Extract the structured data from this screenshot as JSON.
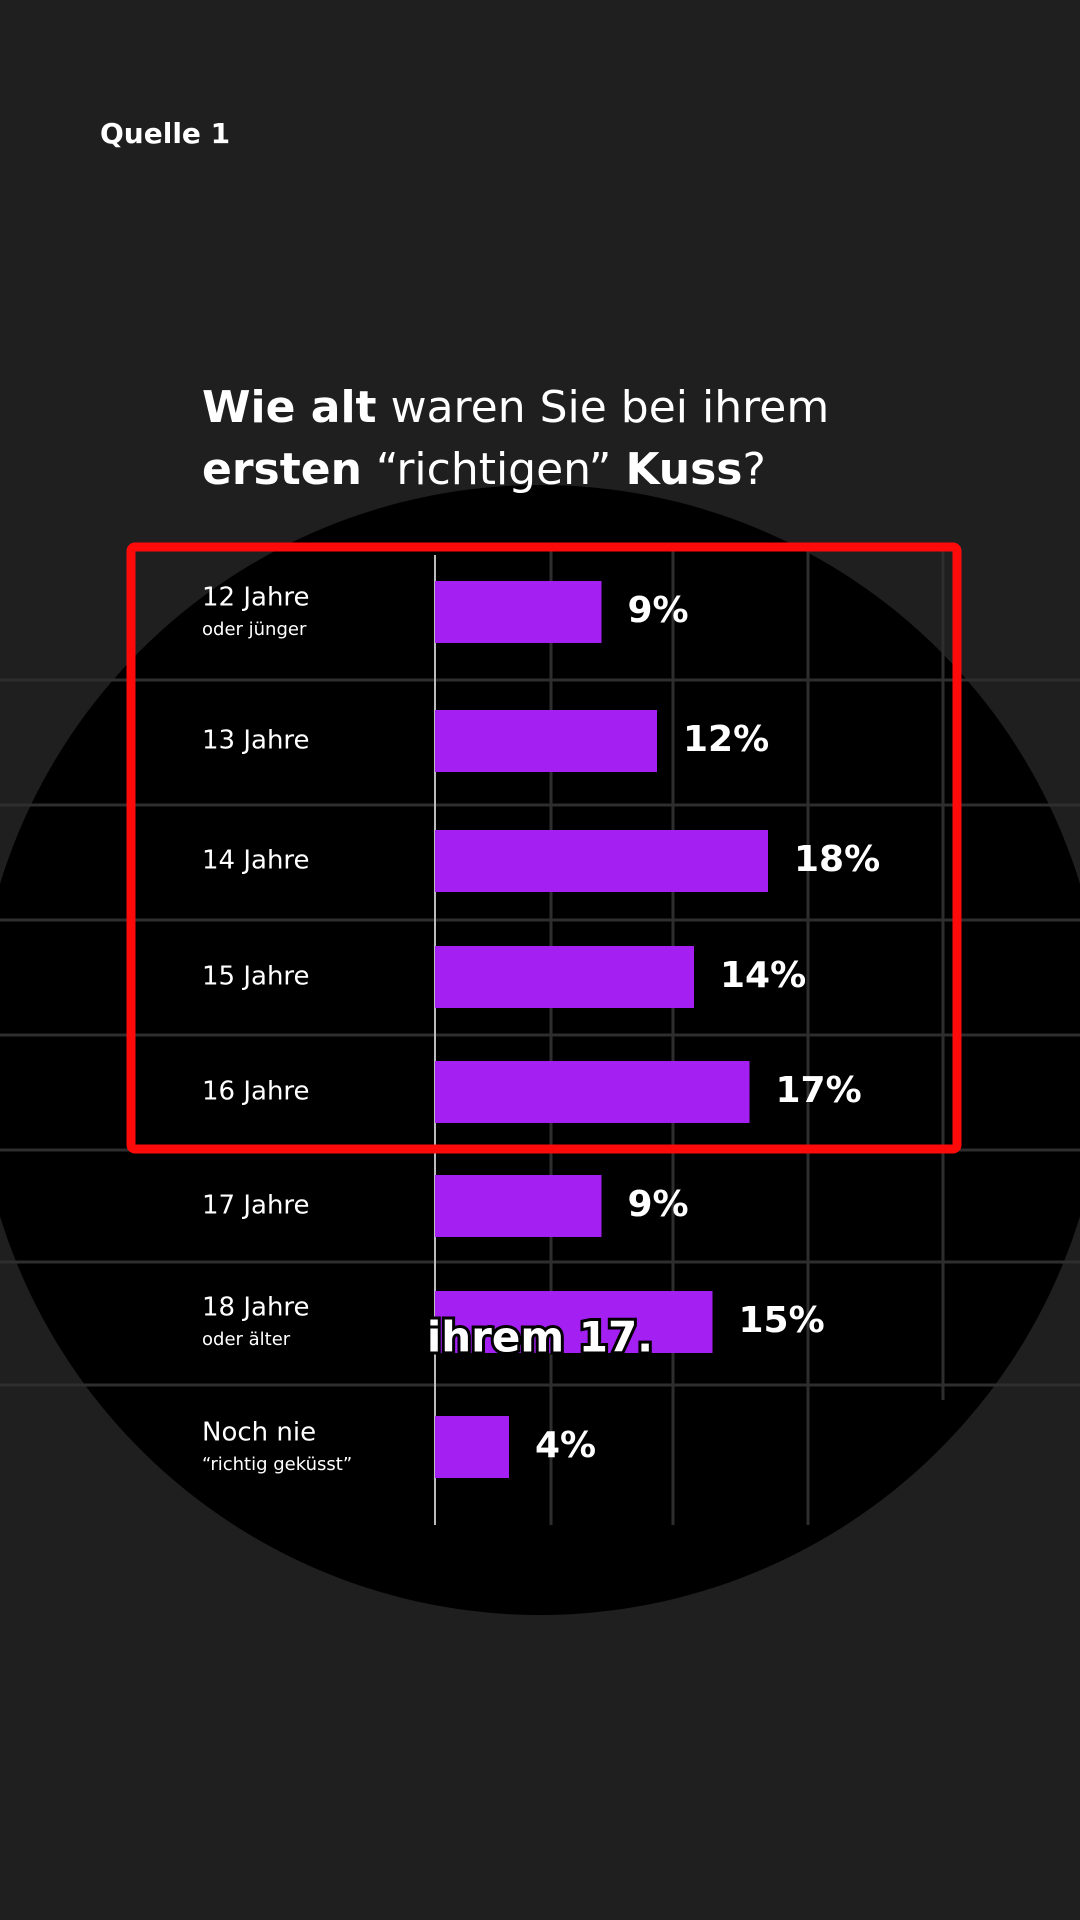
{
  "source": "Quelle 1",
  "chart_data": {
    "type": "hbar",
    "title_lines": [
      [
        {
          "text": "Wie alt",
          "bold": true
        },
        {
          "text": " waren Sie bei ihrem",
          "bold": false
        }
      ],
      [
        {
          "text": "ersten",
          "bold": true
        },
        {
          "text": " “richtigen” ",
          "bold": false
        },
        {
          "text": "Kuss",
          "bold": true
        },
        {
          "text": "?",
          "bold": false
        }
      ]
    ],
    "categories": [
      "12 Jahre",
      "13 Jahre",
      "14 Jahre",
      "15 Jahre",
      "16 Jahre",
      "17 Jahre",
      "18 Jahre",
      "Noch nie"
    ],
    "category_sublabels": [
      "oder jünger",
      null,
      null,
      null,
      null,
      null,
      "oder älter",
      "“richtig geküsst”"
    ],
    "values": [
      9,
      12,
      18,
      14,
      17,
      9,
      15,
      4
    ],
    "value_labels": [
      "9%",
      "12%",
      "18%",
      "14%",
      "17%",
      "9%",
      "15%",
      "4%"
    ],
    "color": "#a31ff2",
    "annotation": "ihrem 17."
  }
}
